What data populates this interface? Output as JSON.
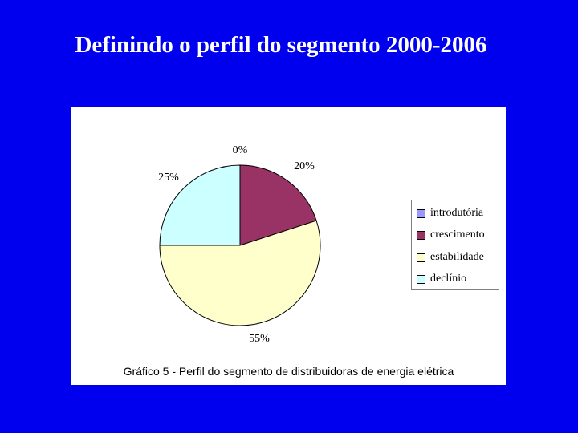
{
  "slide": {
    "title": "Definindo o perfil do segmento 2000-2006",
    "background": "#0000ee"
  },
  "chart_data": {
    "type": "pie",
    "caption": "Gráfico 5 - Perfil do segmento de distribuidoras de energia elétrica",
    "categories": [
      "introdutória",
      "crescimento",
      "estabilidade",
      "declínio"
    ],
    "values": [
      0,
      20,
      55,
      25
    ],
    "value_labels": [
      "0%",
      "20%",
      "55%",
      "25%"
    ],
    "colors": [
      "#9999ff",
      "#993366",
      "#ffffcc",
      "#ccffff"
    ],
    "legend_position": "right"
  },
  "legend": {
    "items": [
      {
        "label": "introdutória",
        "color": "#9999ff"
      },
      {
        "label": "crescimento",
        "color": "#993366"
      },
      {
        "label": "estabilidade",
        "color": "#ffffcc"
      },
      {
        "label": "declínio",
        "color": "#ccffff"
      }
    ]
  }
}
